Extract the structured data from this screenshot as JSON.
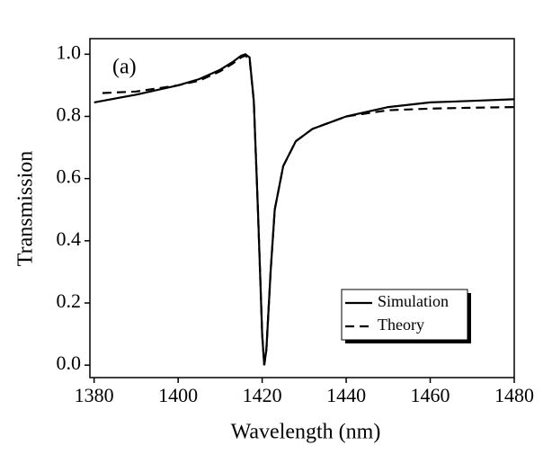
{
  "chart_data": {
    "type": "line",
    "annotation": "(a)",
    "x_label": "Wavelength (nm)",
    "y_label": "Transmission",
    "x": [
      1380,
      1382,
      1390,
      1400,
      1405,
      1410,
      1413,
      1415,
      1416,
      1417,
      1418,
      1419,
      1420,
      1420.5,
      1421,
      1422,
      1423,
      1425,
      1428,
      1432,
      1440,
      1450,
      1460,
      1470,
      1480
    ],
    "series": [
      {
        "name": "Simulation",
        "color": "#000000",
        "dash": false,
        "values": [
          0.845,
          0.85,
          0.87,
          0.9,
          0.92,
          0.95,
          0.975,
          0.995,
          1.0,
          0.99,
          0.85,
          0.5,
          0.1,
          0.0,
          0.05,
          0.3,
          0.5,
          0.64,
          0.72,
          0.76,
          0.8,
          0.83,
          0.845,
          0.85,
          0.855
        ]
      },
      {
        "name": "Theory",
        "color": "#000000",
        "dash": true,
        "values": [
          null,
          0.875,
          0.88,
          0.9,
          0.915,
          0.945,
          0.97,
          0.99,
          0.995,
          0.985,
          0.85,
          0.5,
          0.1,
          0.0,
          0.05,
          0.3,
          0.5,
          0.64,
          0.72,
          0.76,
          0.8,
          0.82,
          0.825,
          0.828,
          0.83
        ]
      }
    ],
    "xlim": [
      1379,
      1480
    ],
    "xticks": [
      1380,
      1400,
      1420,
      1440,
      1460,
      1480
    ],
    "ylim": [
      -0.04,
      1.05
    ],
    "yticks": [
      {
        "value": 0,
        "label": "0.0"
      },
      0.2,
      0.4,
      0.6,
      0.8,
      {
        "value": 1,
        "label": "1.0"
      }
    ],
    "legend": "lower right"
  }
}
